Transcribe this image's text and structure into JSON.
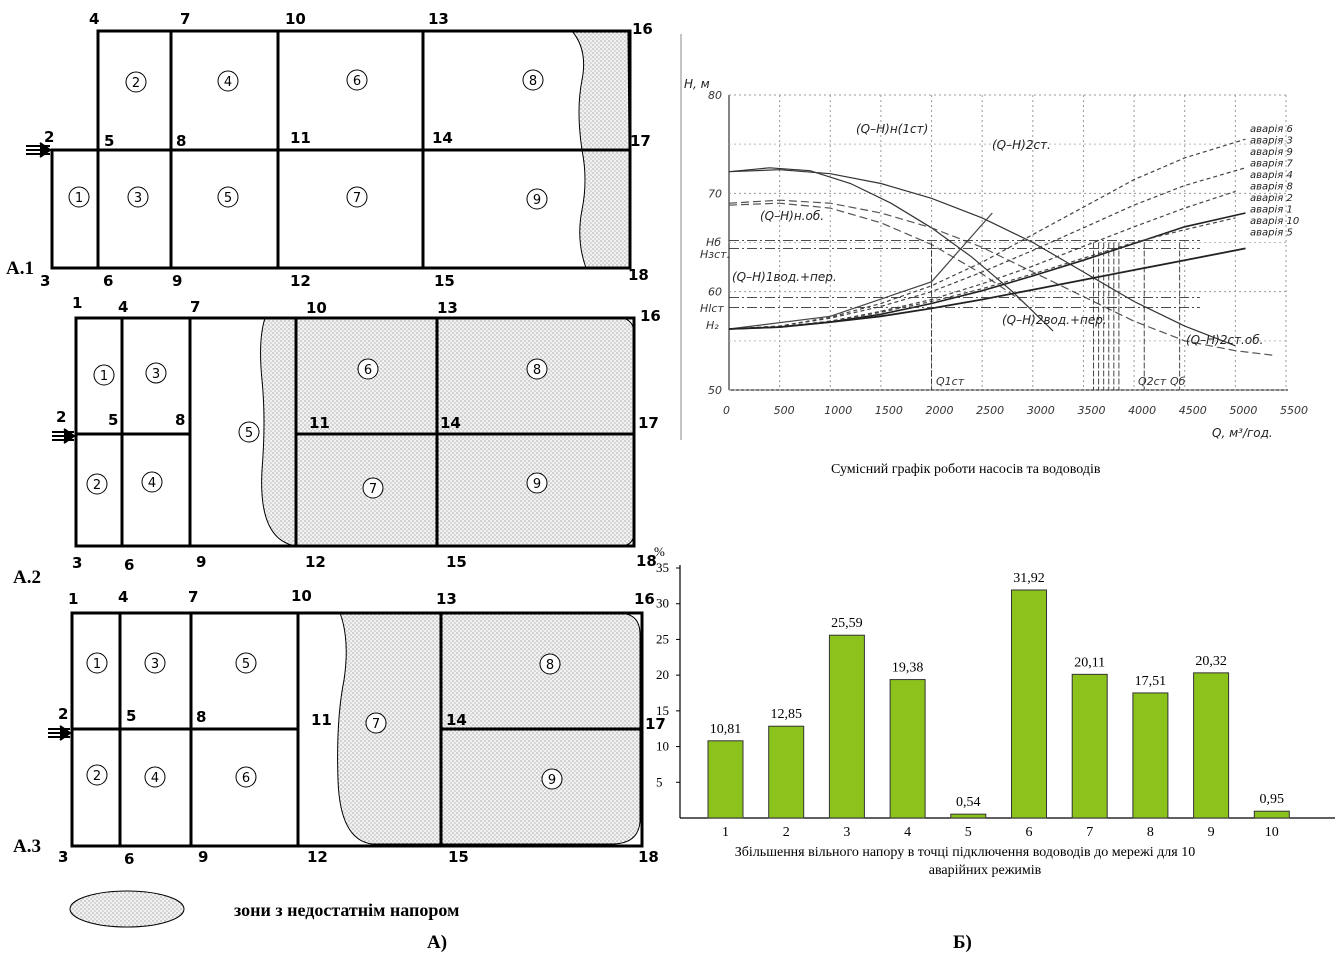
{
  "network_panels": [
    {
      "label": "А.1",
      "nodes": [
        "2",
        "4",
        "7",
        "10",
        "13",
        "16",
        "5",
        "8",
        "11",
        "14",
        "17",
        "3",
        "6",
        "9",
        "12",
        "15",
        "18"
      ],
      "zones": [
        "1",
        "2",
        "3",
        "4",
        "5",
        "6",
        "7",
        "8",
        "9"
      ]
    },
    {
      "label": "А.2",
      "nodes": [
        "1",
        "4",
        "7",
        "10",
        "13",
        "16",
        "2",
        "5",
        "8",
        "11",
        "14",
        "17",
        "3",
        "6",
        "9",
        "12",
        "15",
        "18"
      ],
      "zones": [
        "1",
        "2",
        "3",
        "4",
        "5",
        "6",
        "7",
        "8",
        "9"
      ]
    },
    {
      "label": "А.3",
      "nodes": [
        "1",
        "4",
        "7",
        "10",
        "13",
        "16",
        "2",
        "5",
        "8",
        "11",
        "14",
        "17",
        "3",
        "6",
        "9",
        "12",
        "15",
        "18"
      ],
      "zones": [
        "1",
        "2",
        "3",
        "4",
        "5",
        "6",
        "7",
        "8",
        "9"
      ]
    }
  ],
  "legend": {
    "text": "зони з недостатнім напором"
  },
  "part_labels": {
    "a": "А)",
    "b": "Б)"
  },
  "pump_chart": {
    "caption": "Сумісний графік роботи насосів та водоводів",
    "ylabel": "H, м",
    "xlabel": "Q, м³/год.",
    "x_ticks": [
      "0",
      "500",
      "1000",
      "1500",
      "2000",
      "2500",
      "3000",
      "3500",
      "4000",
      "4500",
      "5000",
      "5500"
    ],
    "y_ticks": [
      "50",
      "60",
      "70",
      "80"
    ],
    "y_marks": [
      "Hб",
      "Нзст.",
      "Нlст",
      "H₂"
    ],
    "x_marks": [
      "Q1ст",
      "Q2ст",
      "Qб"
    ],
    "curve_labels": [
      "(Q–H)н(1ст)",
      "(Q–H)2ст.",
      "(Q–H)н.об.",
      "(Q–H)1вод.+пер.",
      "(Q–H)2вод.+пер.",
      "(Q–H)2ст.об."
    ],
    "accidents": [
      "аварія 6",
      "аварія 3",
      "аварія 9",
      "аварія 7",
      "аварія 4",
      "аварія 8",
      "аварія 2",
      "аварія 1",
      "аварія 10",
      "аварія 5"
    ]
  },
  "chart_data": {
    "type": "bar",
    "categories": [
      "1",
      "2",
      "3",
      "4",
      "5",
      "6",
      "7",
      "8",
      "9",
      "10"
    ],
    "values": [
      10.81,
      12.85,
      25.59,
      19.38,
      0.54,
      31.92,
      20.11,
      17.51,
      20.32,
      0.95
    ],
    "value_labels": [
      "10,81",
      "12,85",
      "25,59",
      "19,38",
      "0,54",
      "31,92",
      "20,11",
      "17,51",
      "20,32",
      "0,95"
    ],
    "ylabel": "%",
    "y_ticks": [
      "5",
      "10",
      "15",
      "20",
      "25",
      "30",
      "35"
    ],
    "ylim": [
      0,
      37
    ],
    "caption_line1": "Збільшення вільного напору в точці підключення водоводів до мережі для 10",
    "caption_line2": "аварійних режимів",
    "bar_color": "#8cc21c"
  }
}
